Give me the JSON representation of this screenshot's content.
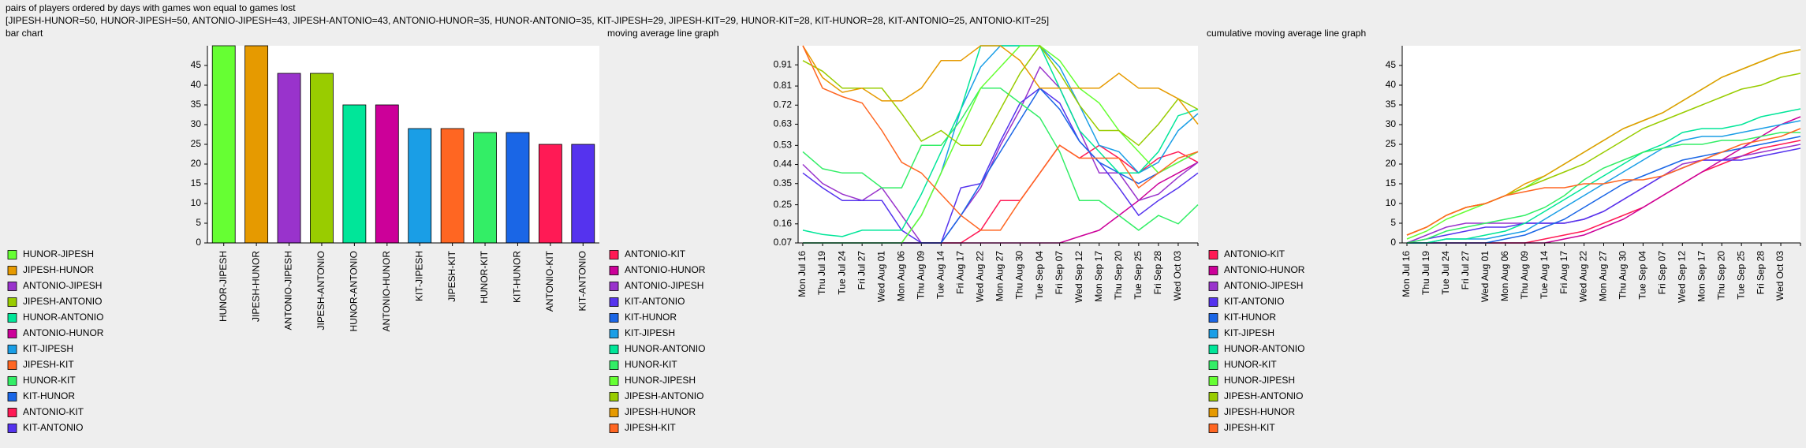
{
  "header": {
    "title": "pairs of players ordered by days with games won equal to games lost",
    "subtitle": "[JIPESH-HUNOR=50, HUNOR-JIPESH=50, ANTONIO-JIPESH=43, JIPESH-ANTONIO=43, ANTONIO-HUNOR=35, HUNOR-ANTONIO=35, KIT-JIPESH=29, JIPESH-KIT=29, HUNOR-KIT=28, KIT-HUNOR=28, KIT-ANTONIO=25, ANTONIO-KIT=25]"
  },
  "chart_data": [
    {
      "type": "bar",
      "title": "bar chart",
      "categories": [
        "HUNOR-JIPESH",
        "JIPESH-HUNOR",
        "ANTONIO-JIPESH",
        "JIPESH-ANTONIO",
        "HUNOR-ANTONIO",
        "ANTONIO-HUNOR",
        "KIT-JIPESH",
        "JIPESH-KIT",
        "HUNOR-KIT",
        "KIT-HUNOR",
        "ANTONIO-KIT",
        "KIT-ANTONIO"
      ],
      "values": [
        50,
        50,
        43,
        43,
        35,
        35,
        29,
        29,
        28,
        28,
        25,
        25
      ],
      "colors": [
        "#66ff33",
        "#e69a00",
        "#9933cc",
        "#99cc00",
        "#00e699",
        "#cc0099",
        "#1a9ee6",
        "#ff6622",
        "#33ee66",
        "#1a66e6",
        "#ff1a55",
        "#5533ee"
      ],
      "ylim": [
        0,
        50
      ],
      "yticks": [
        0,
        5,
        10,
        15,
        20,
        25,
        30,
        35,
        40,
        45
      ],
      "grid": false
    },
    {
      "type": "line",
      "title": "moving average line graph",
      "categories": [
        "Mon Jul 16",
        "Thu Jul 19",
        "Tue Jul 24",
        "Fri Jul 27",
        "Wed Aug 01",
        "Mon Aug 06",
        "Thu Aug 09",
        "Tue Aug 14",
        "Fri Aug 17",
        "Wed Aug 22",
        "Mon Aug 27",
        "Thu Aug 30",
        "Tue Sep 04",
        "Fri Sep 07",
        "Wed Sep 12",
        "Mon Sep 17",
        "Thu Sep 20",
        "Tue Sep 25",
        "Fri Sep 28",
        "Wed Oct 03",
        null
      ],
      "ylim": [
        0.07,
        1.0
      ],
      "yticks": [
        0.07,
        0.16,
        0.25,
        0.35,
        0.44,
        0.53,
        0.63,
        0.72,
        0.81,
        0.91
      ],
      "grid": false,
      "series": [
        {
          "name": "ANTONIO-KIT",
          "color": "#ff1a55",
          "values": [
            0.07,
            0.07,
            0.07,
            0.07,
            0.07,
            0.07,
            0.07,
            0.07,
            0.07,
            0.13,
            0.27,
            0.27,
            0.4,
            0.53,
            0.47,
            0.53,
            0.47,
            0.4,
            0.47,
            0.5,
            0.45
          ]
        },
        {
          "name": "ANTONIO-HUNOR",
          "color": "#cc0099",
          "values": [
            0.07,
            0.07,
            0.07,
            0.07,
            0.07,
            0.07,
            0.07,
            0.07,
            0.07,
            0.07,
            0.07,
            0.07,
            0.07,
            0.07,
            0.1,
            0.13,
            0.2,
            0.27,
            0.35,
            0.4,
            0.45
          ]
        },
        {
          "name": "ANTONIO-JIPESH",
          "color": "#9933cc",
          "values": [
            0.44,
            0.35,
            0.3,
            0.27,
            0.33,
            0.2,
            0.07,
            0.07,
            0.2,
            0.33,
            0.53,
            0.7,
            0.9,
            0.8,
            0.6,
            0.4,
            0.4,
            0.27,
            0.3,
            0.38,
            0.45
          ]
        },
        {
          "name": "KIT-ANTONIO",
          "color": "#5533ee",
          "values": [
            0.4,
            0.33,
            0.27,
            0.27,
            0.27,
            0.13,
            0.07,
            0.07,
            0.33,
            0.35,
            0.55,
            0.73,
            0.8,
            0.73,
            0.55,
            0.45,
            0.33,
            0.2,
            0.27,
            0.33,
            0.4
          ]
        },
        {
          "name": "KIT-HUNOR",
          "color": "#1a66e6",
          "values": [
            0.07,
            0.07,
            0.07,
            0.07,
            0.07,
            0.07,
            0.07,
            0.07,
            0.2,
            0.35,
            0.5,
            0.65,
            0.8,
            0.7,
            0.55,
            0.45,
            0.4,
            0.35,
            0.4,
            0.45,
            0.5
          ]
        },
        {
          "name": "KIT-JIPESH",
          "color": "#1a9ee6",
          "values": [
            0.07,
            0.07,
            0.07,
            0.07,
            0.07,
            0.07,
            0.2,
            0.4,
            0.7,
            0.9,
            1.0,
            1.0,
            1.0,
            0.9,
            0.72,
            0.53,
            0.5,
            0.4,
            0.45,
            0.6,
            0.68
          ]
        },
        {
          "name": "HUNOR-ANTONIO",
          "color": "#00e699",
          "values": [
            0.13,
            0.11,
            0.1,
            0.13,
            0.13,
            0.13,
            0.3,
            0.5,
            0.7,
            1.0,
            1.0,
            1.0,
            1.0,
            0.8,
            0.6,
            0.5,
            0.4,
            0.4,
            0.5,
            0.67,
            0.7
          ]
        },
        {
          "name": "HUNOR-KIT",
          "color": "#33ee66",
          "values": [
            0.5,
            0.42,
            0.4,
            0.4,
            0.33,
            0.33,
            0.53,
            0.53,
            0.65,
            0.8,
            0.8,
            0.73,
            0.66,
            0.5,
            0.27,
            0.27,
            0.2,
            0.13,
            0.2,
            0.16,
            0.25
          ]
        },
        {
          "name": "HUNOR-JIPESH",
          "color": "#66ff33",
          "values": [
            0.07,
            0.07,
            0.07,
            0.07,
            0.07,
            0.07,
            0.2,
            0.4,
            0.6,
            0.8,
            0.9,
            1.0,
            1.0,
            0.93,
            0.8,
            0.73,
            0.6,
            0.5,
            0.4,
            0.45,
            0.5
          ]
        },
        {
          "name": "JIPESH-ANTONIO",
          "color": "#99cc00",
          "values": [
            0.93,
            0.88,
            0.8,
            0.8,
            0.8,
            0.68,
            0.55,
            0.6,
            0.53,
            0.53,
            0.7,
            0.87,
            1.0,
            0.87,
            0.72,
            0.6,
            0.6,
            0.53,
            0.63,
            0.75,
            0.7
          ]
        },
        {
          "name": "JIPESH-HUNOR",
          "color": "#e69a00",
          "values": [
            1.0,
            0.85,
            0.78,
            0.8,
            0.74,
            0.74,
            0.8,
            0.93,
            0.93,
            1.0,
            1.0,
            0.93,
            0.8,
            0.8,
            0.8,
            0.8,
            0.87,
            0.8,
            0.8,
            0.75,
            0.63
          ]
        },
        {
          "name": "JIPESH-KIT",
          "color": "#ff6622",
          "values": [
            1.0,
            0.8,
            0.76,
            0.73,
            0.6,
            0.45,
            0.4,
            0.3,
            0.2,
            0.13,
            0.13,
            0.27,
            0.4,
            0.53,
            0.47,
            0.47,
            0.47,
            0.33,
            0.4,
            0.47,
            0.5
          ]
        }
      ]
    },
    {
      "type": "line",
      "title": "cumulative moving average line graph",
      "categories": [
        "Mon Jul 16",
        "Thu Jul 19",
        "Tue Jul 24",
        "Fri Jul 27",
        "Wed Aug 01",
        "Mon Aug 06",
        "Thu Aug 09",
        "Tue Aug 14",
        "Fri Aug 17",
        "Wed Aug 22",
        "Mon Aug 27",
        "Thu Aug 30",
        "Tue Sep 04",
        "Fri Sep 07",
        "Wed Sep 12",
        "Mon Sep 17",
        "Thu Sep 20",
        "Tue Sep 25",
        "Fri Sep 28",
        "Wed Oct 03",
        null
      ],
      "ylim": [
        0,
        50
      ],
      "yticks": [
        0,
        5,
        10,
        15,
        20,
        25,
        30,
        35,
        40,
        45
      ],
      "grid": false,
      "series": [
        {
          "name": "ANTONIO-KIT",
          "color": "#ff1a55",
          "values": [
            0,
            0,
            0,
            0,
            0,
            0,
            0,
            1,
            2,
            3,
            5,
            7,
            9,
            12,
            15,
            18,
            20,
            22,
            24,
            25,
            26
          ]
        },
        {
          "name": "ANTONIO-HUNOR",
          "color": "#cc0099",
          "values": [
            0,
            0,
            0,
            0,
            0,
            0,
            0,
            0,
            1,
            2,
            4,
            6,
            9,
            12,
            15,
            18,
            21,
            24,
            27,
            30,
            32
          ]
        },
        {
          "name": "ANTONIO-JIPESH",
          "color": "#9933cc",
          "values": [
            0,
            2,
            4,
            5,
            5,
            5,
            5,
            5,
            5,
            6,
            8,
            11,
            14,
            17,
            20,
            21,
            21,
            22,
            23,
            24,
            25
          ]
        },
        {
          "name": "KIT-ANTONIO",
          "color": "#5533ee",
          "values": [
            0,
            1,
            2,
            3,
            4,
            4,
            5,
            5,
            5,
            6,
            8,
            11,
            14,
            17,
            19,
            21,
            21,
            21,
            22,
            23,
            24
          ]
        },
        {
          "name": "KIT-HUNOR",
          "color": "#1a66e6",
          "values": [
            0,
            0,
            0,
            0,
            0,
            1,
            2,
            4,
            6,
            9,
            12,
            15,
            17,
            19,
            21,
            22,
            23,
            24,
            25,
            26,
            27
          ]
        },
        {
          "name": "KIT-JIPESH",
          "color": "#1a9ee6",
          "values": [
            0,
            0,
            1,
            1,
            1,
            2,
            3,
            6,
            9,
            12,
            15,
            18,
            21,
            24,
            26,
            27,
            27,
            28,
            29,
            30,
            31
          ]
        },
        {
          "name": "HUNOR-ANTONIO",
          "color": "#00e699",
          "values": [
            0,
            0,
            1,
            1,
            2,
            3,
            5,
            8,
            11,
            14,
            17,
            20,
            23,
            25,
            28,
            29,
            29,
            30,
            32,
            33,
            34
          ]
        },
        {
          "name": "HUNOR-KIT",
          "color": "#33ee66",
          "values": [
            0,
            1,
            3,
            4,
            5,
            6,
            7,
            9,
            12,
            16,
            19,
            21,
            23,
            24,
            25,
            25,
            26,
            26,
            27,
            28,
            28
          ]
        },
        {
          "name": "HUNOR-JIPESH",
          "color": "#66ff33",
          "values": [
            1,
            3,
            6,
            8,
            10,
            12,
            14,
            17,
            20,
            23,
            26,
            29,
            31,
            33,
            36,
            39,
            42,
            44,
            46,
            48,
            49
          ]
        },
        {
          "name": "JIPESH-ANTONIO",
          "color": "#99cc00",
          "values": [
            2,
            4,
            7,
            9,
            10,
            12,
            14,
            16,
            18,
            20,
            23,
            26,
            29,
            31,
            33,
            35,
            37,
            39,
            40,
            42,
            43
          ]
        },
        {
          "name": "JIPESH-HUNOR",
          "color": "#e69a00",
          "values": [
            2,
            4,
            7,
            9,
            10,
            12,
            15,
            17,
            20,
            23,
            26,
            29,
            31,
            33,
            36,
            39,
            42,
            44,
            46,
            48,
            49
          ]
        },
        {
          "name": "JIPESH-KIT",
          "color": "#ff6622",
          "values": [
            2,
            4,
            7,
            9,
            10,
            12,
            13,
            14,
            14,
            15,
            15,
            16,
            16,
            17,
            19,
            21,
            23,
            25,
            26,
            27,
            29
          ]
        }
      ]
    }
  ]
}
